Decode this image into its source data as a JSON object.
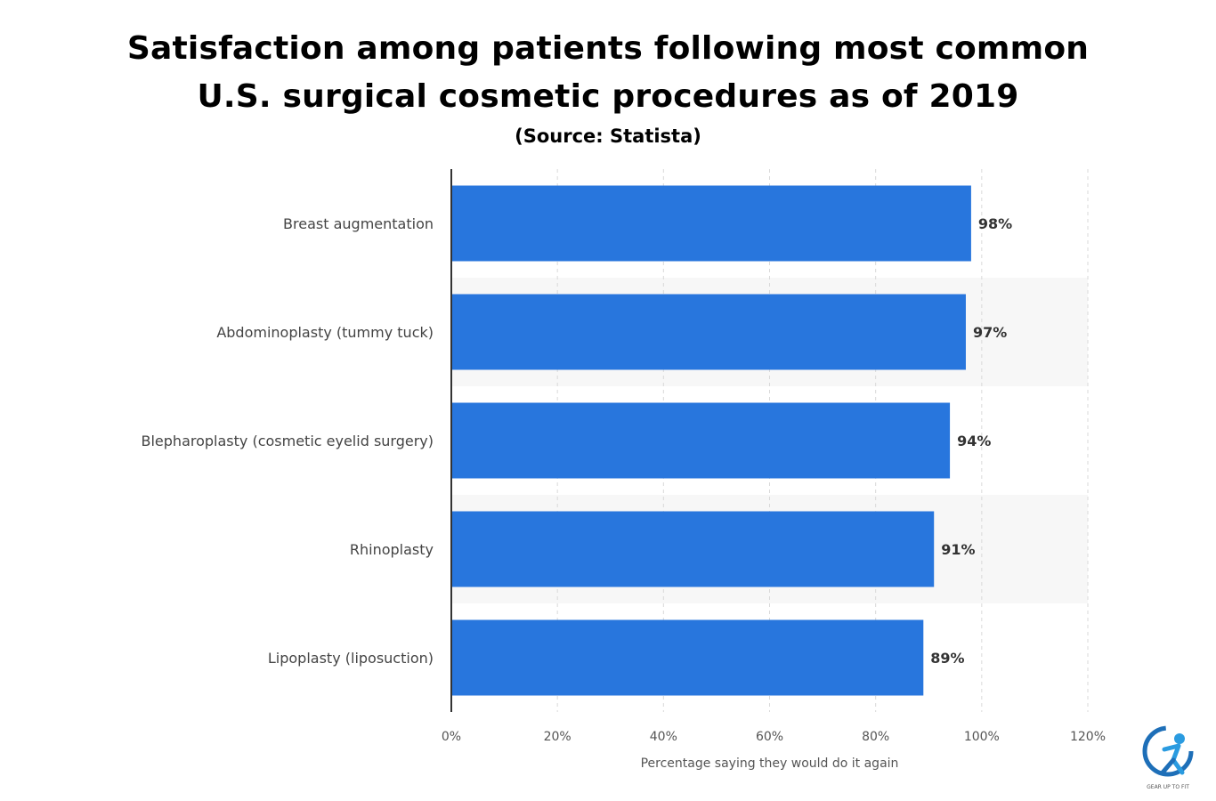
{
  "title_lines": [
    "Satisfaction among patients following most common",
    "U.S. surgical cosmetic procedures as of 2019"
  ],
  "source": "(Source: Statista)",
  "logo_text": "GEAR UP TO FIT",
  "chart_data": {
    "type": "bar",
    "orientation": "horizontal",
    "categories": [
      "Breast augmentation",
      "Abdominoplasty (tummy tuck)",
      "Blepharoplasty (cosmetic eyelid surgery)",
      "Rhinoplasty",
      "Lipoplasty (liposuction)"
    ],
    "values": [
      98,
      97,
      94,
      91,
      89
    ],
    "data_labels": [
      "98%",
      "97%",
      "94%",
      "91%",
      "89%"
    ],
    "xlabel": "Percentage saying they would do it again",
    "xlim": [
      0,
      120
    ],
    "xticks": [
      0,
      20,
      40,
      60,
      80,
      100,
      120
    ],
    "xtick_labels": [
      "0%",
      "20%",
      "40%",
      "60%",
      "80%",
      "100%",
      "120%"
    ],
    "grid": "vertical dashed",
    "bar_color": "#2876dd"
  }
}
